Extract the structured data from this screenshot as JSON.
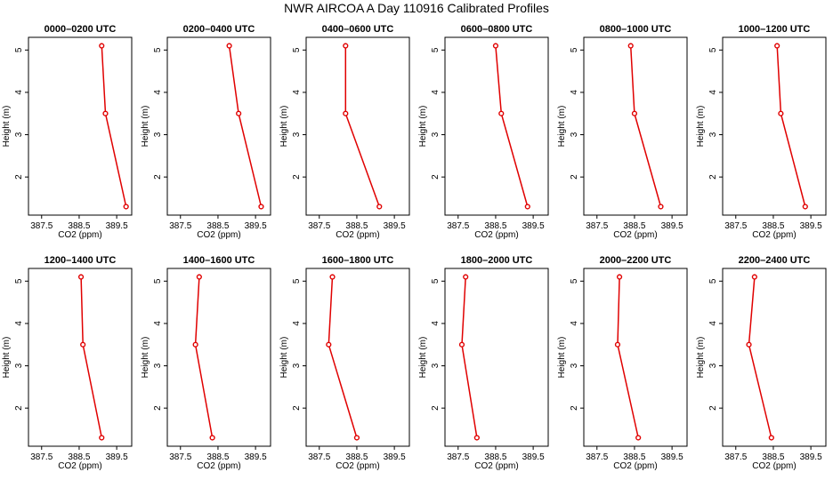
{
  "figure": {
    "title": "NWR AIRCOA A  Day 110916  Calibrated Profiles"
  },
  "colors": {
    "series": "#e00000",
    "axis": "#000000",
    "background": "#ffffff"
  },
  "chart_data": [
    {
      "type": "line",
      "title": "0000–0200 UTC",
      "xlabel": "CO2 (ppm)",
      "ylabel": "Height (m)",
      "xlim": [
        387.15,
        389.9
      ],
      "ylim": [
        1.1,
        5.3
      ],
      "xticks": [
        "387.5",
        "388.5",
        "389.5"
      ],
      "xtick_values": [
        387.5,
        388.5,
        389.5
      ],
      "yticks": [
        "2",
        "3",
        "4",
        "5"
      ],
      "ytick_values": [
        2,
        3,
        4,
        5
      ],
      "x": [
        389.1,
        389.2,
        389.75
      ],
      "y": [
        5.1,
        3.5,
        1.3
      ],
      "grid": false
    },
    {
      "type": "line",
      "title": "0200–0400 UTC",
      "xlabel": "CO2 (ppm)",
      "ylabel": "Height (m)",
      "xlim": [
        387.15,
        389.9
      ],
      "ylim": [
        1.1,
        5.3
      ],
      "xticks": [
        "387.5",
        "388.5",
        "389.5"
      ],
      "xtick_values": [
        387.5,
        388.5,
        389.5
      ],
      "yticks": [
        "2",
        "3",
        "4",
        "5"
      ],
      "ytick_values": [
        2,
        3,
        4,
        5
      ],
      "x": [
        388.8,
        389.05,
        389.65
      ],
      "y": [
        5.1,
        3.5,
        1.3
      ],
      "grid": false
    },
    {
      "type": "line",
      "title": "0400–0600 UTC",
      "xlabel": "CO2 (ppm)",
      "ylabel": "Height (m)",
      "xlim": [
        387.15,
        389.9
      ],
      "ylim": [
        1.1,
        5.3
      ],
      "xticks": [
        "387.5",
        "388.5",
        "389.5"
      ],
      "xtick_values": [
        387.5,
        388.5,
        389.5
      ],
      "yticks": [
        "2",
        "3",
        "4",
        "5"
      ],
      "ytick_values": [
        2,
        3,
        4,
        5
      ],
      "x": [
        388.2,
        388.2,
        389.1
      ],
      "y": [
        5.1,
        3.5,
        1.3
      ],
      "grid": false
    },
    {
      "type": "line",
      "title": "0600–0800 UTC",
      "xlabel": "CO2 (ppm)",
      "ylabel": "Height (m)",
      "xlim": [
        387.15,
        389.9
      ],
      "ylim": [
        1.1,
        5.3
      ],
      "xticks": [
        "387.5",
        "388.5",
        "389.5"
      ],
      "xtick_values": [
        387.5,
        388.5,
        389.5
      ],
      "yticks": [
        "2",
        "3",
        "4",
        "5"
      ],
      "ytick_values": [
        2,
        3,
        4,
        5
      ],
      "x": [
        388.5,
        388.65,
        389.35
      ],
      "y": [
        5.1,
        3.5,
        1.3
      ],
      "grid": false
    },
    {
      "type": "line",
      "title": "0800–1000 UTC",
      "xlabel": "CO2 (ppm)",
      "ylabel": "Height (m)",
      "xlim": [
        387.15,
        389.9
      ],
      "ylim": [
        1.1,
        5.3
      ],
      "xticks": [
        "387.5",
        "388.5",
        "389.5"
      ],
      "xtick_values": [
        387.5,
        388.5,
        389.5
      ],
      "yticks": [
        "2",
        "3",
        "4",
        "5"
      ],
      "ytick_values": [
        2,
        3,
        4,
        5
      ],
      "x": [
        388.4,
        388.5,
        389.2
      ],
      "y": [
        5.1,
        3.5,
        1.3
      ],
      "grid": false
    },
    {
      "type": "line",
      "title": "1000–1200 UTC",
      "xlabel": "CO2 (ppm)",
      "ylabel": "Height (m)",
      "xlim": [
        387.15,
        389.9
      ],
      "ylim": [
        1.1,
        5.3
      ],
      "xticks": [
        "387.5",
        "388.5",
        "389.5"
      ],
      "xtick_values": [
        387.5,
        388.5,
        389.5
      ],
      "yticks": [
        "2",
        "3",
        "4",
        "5"
      ],
      "ytick_values": [
        2,
        3,
        4,
        5
      ],
      "x": [
        388.6,
        388.7,
        389.35
      ],
      "y": [
        5.1,
        3.5,
        1.3
      ],
      "grid": false
    },
    {
      "type": "line",
      "title": "1200–1400 UTC",
      "xlabel": "CO2 (ppm)",
      "ylabel": "Height (m)",
      "xlim": [
        387.15,
        389.9
      ],
      "ylim": [
        1.1,
        5.3
      ],
      "xticks": [
        "387.5",
        "388.5",
        "389.5"
      ],
      "xtick_values": [
        387.5,
        388.5,
        389.5
      ],
      "yticks": [
        "2",
        "3",
        "4",
        "5"
      ],
      "ytick_values": [
        2,
        3,
        4,
        5
      ],
      "x": [
        388.55,
        388.6,
        389.1
      ],
      "y": [
        5.1,
        3.5,
        1.3
      ],
      "grid": false
    },
    {
      "type": "line",
      "title": "1400–1600 UTC",
      "xlabel": "CO2 (ppm)",
      "ylabel": "Height (m)",
      "xlim": [
        387.15,
        389.9
      ],
      "ylim": [
        1.1,
        5.3
      ],
      "xticks": [
        "387.5",
        "388.5",
        "389.5"
      ],
      "xtick_values": [
        387.5,
        388.5,
        389.5
      ],
      "yticks": [
        "2",
        "3",
        "4",
        "5"
      ],
      "ytick_values": [
        2,
        3,
        4,
        5
      ],
      "x": [
        388.0,
        387.9,
        388.35
      ],
      "y": [
        5.1,
        3.5,
        1.3
      ],
      "grid": false
    },
    {
      "type": "line",
      "title": "1600–1800 UTC",
      "xlabel": "CO2 (ppm)",
      "ylabel": "Height (m)",
      "xlim": [
        387.15,
        389.9
      ],
      "ylim": [
        1.1,
        5.3
      ],
      "xticks": [
        "387.5",
        "388.5",
        "389.5"
      ],
      "xtick_values": [
        387.5,
        388.5,
        389.5
      ],
      "yticks": [
        "2",
        "3",
        "4",
        "5"
      ],
      "ytick_values": [
        2,
        3,
        4,
        5
      ],
      "x": [
        387.85,
        387.75,
        388.5
      ],
      "y": [
        5.1,
        3.5,
        1.3
      ],
      "grid": false
    },
    {
      "type": "line",
      "title": "1800–2000 UTC",
      "xlabel": "CO2 (ppm)",
      "ylabel": "Height (m)",
      "xlim": [
        387.15,
        389.9
      ],
      "ylim": [
        1.1,
        5.3
      ],
      "xticks": [
        "387.5",
        "388.5",
        "389.5"
      ],
      "xtick_values": [
        387.5,
        388.5,
        389.5
      ],
      "yticks": [
        "2",
        "3",
        "4",
        "5"
      ],
      "ytick_values": [
        2,
        3,
        4,
        5
      ],
      "x": [
        387.7,
        387.6,
        388.0
      ],
      "y": [
        5.1,
        3.5,
        1.3
      ],
      "grid": false
    },
    {
      "type": "line",
      "title": "2000–2200 UTC",
      "xlabel": "CO2 (ppm)",
      "ylabel": "Height (m)",
      "xlim": [
        387.15,
        389.9
      ],
      "ylim": [
        1.1,
        5.3
      ],
      "xticks": [
        "387.5",
        "388.5",
        "389.5"
      ],
      "xtick_values": [
        387.5,
        388.5,
        389.5
      ],
      "yticks": [
        "2",
        "3",
        "4",
        "5"
      ],
      "ytick_values": [
        2,
        3,
        4,
        5
      ],
      "x": [
        388.1,
        388.05,
        388.6
      ],
      "y": [
        5.1,
        3.5,
        1.3
      ],
      "grid": false
    },
    {
      "type": "line",
      "title": "2200–2400 UTC",
      "xlabel": "CO2 (ppm)",
      "ylabel": "Height (m)",
      "xlim": [
        387.15,
        389.9
      ],
      "ylim": [
        1.1,
        5.3
      ],
      "xticks": [
        "387.5",
        "388.5",
        "389.5"
      ],
      "xtick_values": [
        387.5,
        388.5,
        389.5
      ],
      "yticks": [
        "2",
        "3",
        "4",
        "5"
      ],
      "ytick_values": [
        2,
        3,
        4,
        5
      ],
      "x": [
        388.0,
        387.85,
        388.45
      ],
      "y": [
        5.1,
        3.5,
        1.3
      ],
      "grid": false
    }
  ]
}
